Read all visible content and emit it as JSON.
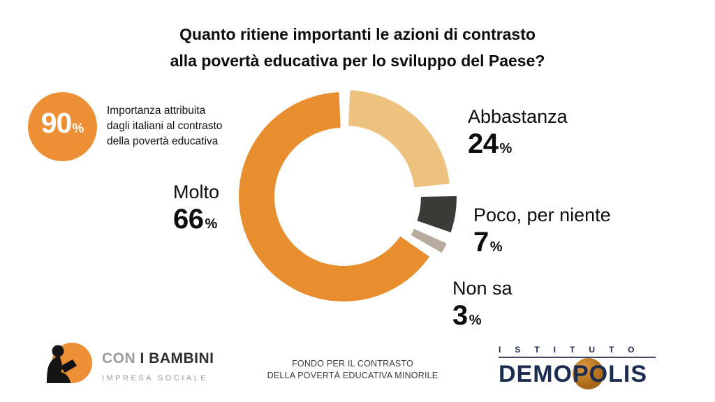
{
  "title": {
    "line1": "Quanto ritiene importanti le azioni di contrasto",
    "line2": "alla povertà educativa per lo sviluppo del Paese?"
  },
  "highlight": {
    "value": 90,
    "unit": "%",
    "caption_line1": "Importanza attribuita",
    "caption_line2": "dagli italiani al contrasto",
    "caption_line3": "della povertà educativa"
  },
  "colors": {
    "accent_orange": "#EC8F35",
    "molto_orange": "#E88E2E",
    "abbastanza_tan": "#ECC27E",
    "poco_dark": "#3B3A37",
    "nonsa_gray": "#B7AB9E",
    "demopolis_navy": "#1C2B50"
  },
  "chart_data": {
    "type": "pie",
    "subtype": "donut",
    "title": "Quanto ritiene importanti le azioni di contrasto alla povertà educativa per lo sviluppo del Paese?",
    "units": "%",
    "segments": [
      {
        "label": "Abbastanza",
        "value": 24,
        "color": "#ECC27E",
        "offset": 4
      },
      {
        "label": "Poco, per niente",
        "value": 7,
        "color": "#3B3A37",
        "offset": 12
      },
      {
        "label": "Non sa",
        "value": 3,
        "color": "#B7AB9E",
        "offset": 12
      },
      {
        "label": "Molto",
        "value": 66,
        "color": "#E88E2E",
        "offset": 0
      }
    ],
    "layout": {
      "start_angle_deg": 0,
      "gap_deg": 5,
      "outer_radius": 150,
      "inner_radius": 99,
      "clockwise": true,
      "labels": "callout"
    }
  },
  "footer": {
    "conibambini": {
      "name_gray": "CON",
      "name_dark": "I BAMBINI",
      "subtitle": "IMPRESA SOCIALE"
    },
    "fund": {
      "line1": "FONDO PER IL CONTRASTO",
      "line2": "DELLA POVERTÀ EDUCATIVA MINORILE"
    },
    "demopolis": {
      "institute": "ISTITUTO",
      "name": "DEMOPOLIS"
    }
  }
}
